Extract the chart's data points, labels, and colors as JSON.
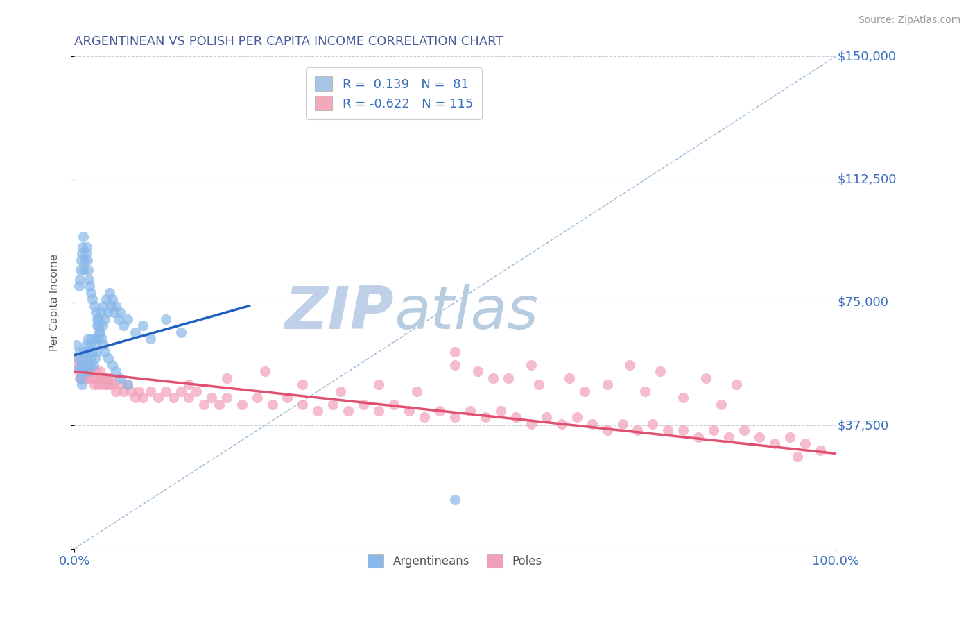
{
  "title": "ARGENTINEAN VS POLISH PER CAPITA INCOME CORRELATION CHART",
  "source_text": "Source: ZipAtlas.com",
  "ylabel": "Per Capita Income",
  "xlim": [
    0,
    1
  ],
  "ylim": [
    0,
    150000
  ],
  "yticks": [
    0,
    37500,
    75000,
    112500,
    150000
  ],
  "ytick_labels": [
    "",
    "$37,500",
    "$75,000",
    "$112,500",
    "$150,000"
  ],
  "xticks": [
    0,
    1
  ],
  "xtick_labels": [
    "0.0%",
    "100.0%"
  ],
  "title_color": "#4a5a9a",
  "axis_label_color": "#555555",
  "tick_color": "#3a6ebf",
  "grid_color": "#c8d0e0",
  "background_color": "#ffffff",
  "legend_r1": "R =  0.139   N =  81",
  "legend_r2": "R = -0.622   N = 115",
  "legend_color1": "#aac4e8",
  "legend_color2": "#f4a8b8",
  "watermark_zip": "ZIP",
  "watermark_atlas": "atlas",
  "watermark_color_zip": "#c0d0e8",
  "watermark_color_atlas": "#b8cce0",
  "source_color": "#999999",
  "arg_x": [
    0.003,
    0.005,
    0.006,
    0.007,
    0.008,
    0.009,
    0.01,
    0.011,
    0.012,
    0.013,
    0.014,
    0.015,
    0.016,
    0.017,
    0.018,
    0.019,
    0.02,
    0.021,
    0.022,
    0.023,
    0.024,
    0.025,
    0.026,
    0.027,
    0.028,
    0.029,
    0.03,
    0.031,
    0.032,
    0.033,
    0.035,
    0.037,
    0.038,
    0.04,
    0.042,
    0.044,
    0.046,
    0.048,
    0.05,
    0.052,
    0.055,
    0.058,
    0.06,
    0.065,
    0.07,
    0.08,
    0.09,
    0.1,
    0.12,
    0.14,
    0.006,
    0.007,
    0.008,
    0.009,
    0.01,
    0.011,
    0.012,
    0.013,
    0.014,
    0.015,
    0.016,
    0.017,
    0.018,
    0.019,
    0.02,
    0.022,
    0.024,
    0.026,
    0.028,
    0.03,
    0.032,
    0.034,
    0.036,
    0.038,
    0.04,
    0.045,
    0.05,
    0.055,
    0.06,
    0.07,
    0.5
  ],
  "arg_y": [
    62000,
    58000,
    55000,
    60000,
    52000,
    56000,
    50000,
    58000,
    54000,
    60000,
    56000,
    62000,
    58000,
    54000,
    64000,
    60000,
    56000,
    62000,
    58000,
    64000,
    60000,
    56000,
    62000,
    58000,
    64000,
    60000,
    68000,
    64000,
    70000,
    66000,
    72000,
    68000,
    74000,
    70000,
    76000,
    72000,
    78000,
    74000,
    76000,
    72000,
    74000,
    70000,
    72000,
    68000,
    70000,
    66000,
    68000,
    64000,
    70000,
    66000,
    80000,
    82000,
    85000,
    88000,
    90000,
    92000,
    95000,
    85000,
    88000,
    90000,
    92000,
    88000,
    85000,
    82000,
    80000,
    78000,
    76000,
    74000,
    72000,
    70000,
    68000,
    66000,
    64000,
    62000,
    60000,
    58000,
    56000,
    54000,
    52000,
    50000,
    15000
  ],
  "arg_color": "#88b8ea",
  "arg_alpha": 0.7,
  "arg_size": 120,
  "pol_x": [
    0.003,
    0.005,
    0.006,
    0.007,
    0.008,
    0.009,
    0.01,
    0.011,
    0.012,
    0.013,
    0.014,
    0.015,
    0.016,
    0.017,
    0.018,
    0.019,
    0.02,
    0.022,
    0.024,
    0.026,
    0.028,
    0.03,
    0.032,
    0.034,
    0.036,
    0.038,
    0.04,
    0.042,
    0.044,
    0.046,
    0.048,
    0.05,
    0.055,
    0.06,
    0.065,
    0.07,
    0.075,
    0.08,
    0.085,
    0.09,
    0.1,
    0.11,
    0.12,
    0.13,
    0.14,
    0.15,
    0.16,
    0.17,
    0.18,
    0.19,
    0.2,
    0.22,
    0.24,
    0.26,
    0.28,
    0.3,
    0.32,
    0.34,
    0.36,
    0.38,
    0.4,
    0.42,
    0.44,
    0.46,
    0.48,
    0.5,
    0.52,
    0.54,
    0.56,
    0.58,
    0.6,
    0.62,
    0.64,
    0.66,
    0.68,
    0.7,
    0.72,
    0.74,
    0.76,
    0.78,
    0.8,
    0.82,
    0.84,
    0.86,
    0.88,
    0.9,
    0.92,
    0.94,
    0.96,
    0.98,
    0.5,
    0.53,
    0.57,
    0.61,
    0.67,
    0.73,
    0.77,
    0.83,
    0.87,
    0.5,
    0.15,
    0.2,
    0.25,
    0.3,
    0.35,
    0.6,
    0.65,
    0.7,
    0.75,
    0.8,
    0.85,
    0.55,
    0.45,
    0.4,
    0.95
  ],
  "pol_y": [
    58000,
    56000,
    54000,
    52000,
    56000,
    54000,
    52000,
    56000,
    54000,
    52000,
    56000,
    54000,
    52000,
    56000,
    54000,
    52000,
    56000,
    54000,
    52000,
    50000,
    54000,
    52000,
    50000,
    54000,
    52000,
    50000,
    52000,
    50000,
    52000,
    50000,
    52000,
    50000,
    48000,
    50000,
    48000,
    50000,
    48000,
    46000,
    48000,
    46000,
    48000,
    46000,
    48000,
    46000,
    48000,
    46000,
    48000,
    44000,
    46000,
    44000,
    46000,
    44000,
    46000,
    44000,
    46000,
    44000,
    42000,
    44000,
    42000,
    44000,
    42000,
    44000,
    42000,
    40000,
    42000,
    40000,
    42000,
    40000,
    42000,
    40000,
    38000,
    40000,
    38000,
    40000,
    38000,
    36000,
    38000,
    36000,
    38000,
    36000,
    36000,
    34000,
    36000,
    34000,
    36000,
    34000,
    32000,
    34000,
    32000,
    30000,
    56000,
    54000,
    52000,
    50000,
    48000,
    56000,
    54000,
    52000,
    50000,
    60000,
    50000,
    52000,
    54000,
    50000,
    48000,
    56000,
    52000,
    50000,
    48000,
    46000,
    44000,
    52000,
    48000,
    50000,
    28000
  ],
  "pol_color": "#f0a0b8",
  "pol_alpha": 0.7,
  "pol_size": 120,
  "blue_line_x": [
    0.0,
    0.23
  ],
  "blue_line_y": [
    59000,
    74000
  ],
  "blue_line_color": "#2060c0",
  "pink_line_x": [
    0.0,
    1.0
  ],
  "pink_line_y": [
    54000,
    29000
  ],
  "pink_line_color": "#e05070",
  "diag_line_x": [
    0.0,
    1.0
  ],
  "diag_line_y": [
    0,
    150000
  ],
  "diag_line_color": "#99b8d8"
}
